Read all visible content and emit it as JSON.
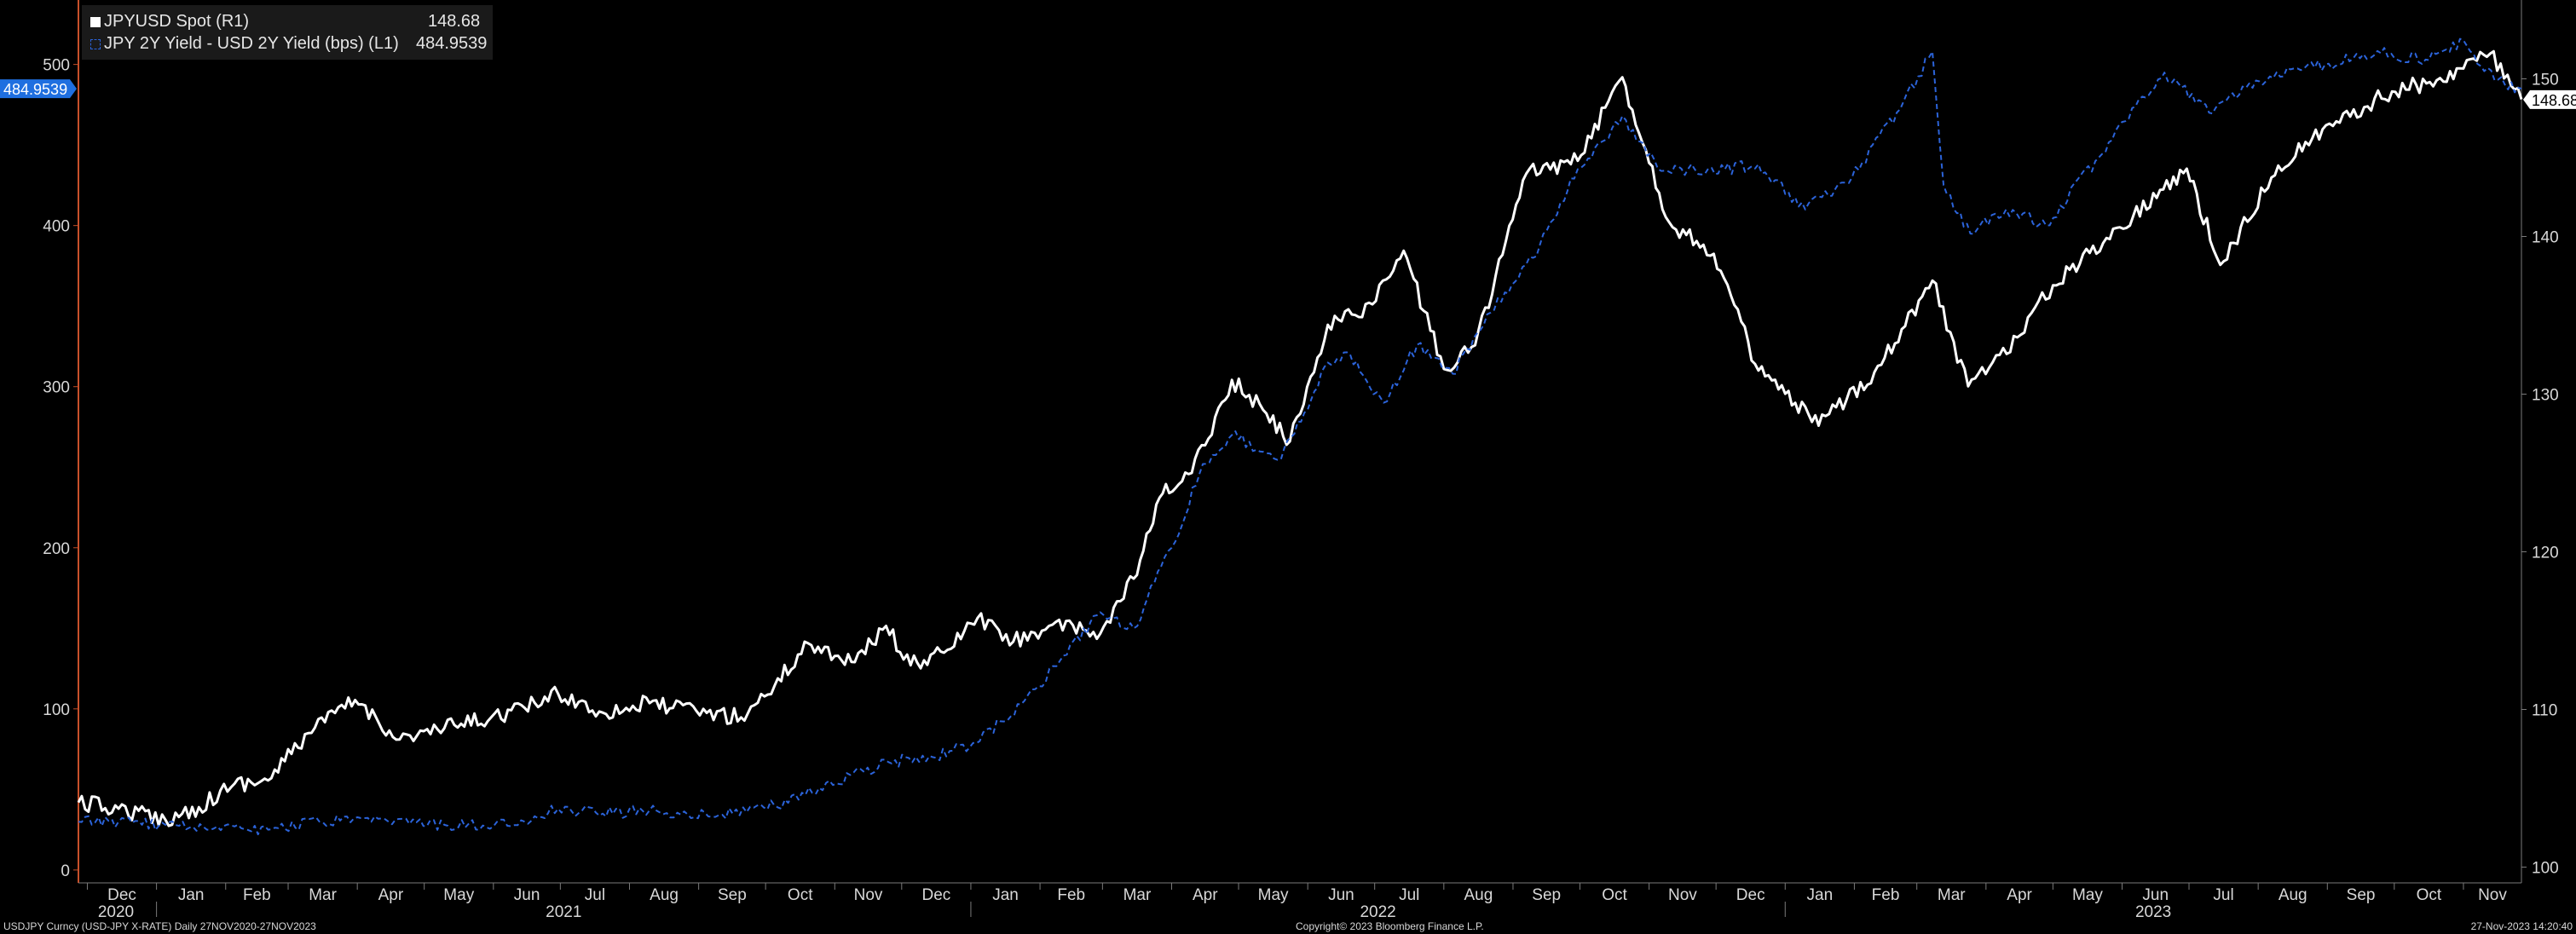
{
  "chart_data": {
    "type": "line",
    "x_range": [
      "2020-11-27",
      "2023-11-27"
    ],
    "frequency": "Daily",
    "left_axis": {
      "ticks": [
        0,
        100,
        200,
        300,
        400,
        500
      ],
      "range": [
        -8,
        540
      ],
      "current_value_label": "484.9539"
    },
    "right_axis": {
      "ticks": [
        100,
        110,
        120,
        130,
        140,
        150
      ],
      "range": [
        99,
        155
      ],
      "current_value_label": "148.68"
    },
    "x_month_labels": [
      "Dec",
      "Jan",
      "Feb",
      "Mar",
      "Apr",
      "May",
      "Jun",
      "Jul",
      "Aug",
      "Sep",
      "Oct",
      "Nov",
      "Dec",
      "Jan",
      "Feb",
      "Mar",
      "Apr",
      "May",
      "Jun",
      "Jul",
      "Aug",
      "Sep",
      "Oct",
      "Nov",
      "Dec",
      "Jan",
      "Feb",
      "Mar",
      "Apr",
      "May",
      "Jun",
      "Jul",
      "Aug",
      "Sep",
      "Oct",
      "Nov"
    ],
    "x_year_labels": [
      "2020",
      "2021",
      "2022",
      "2023"
    ],
    "grid": false,
    "legend_position": "top-left",
    "series": [
      {
        "name": "JPYUSD Spot (R1)",
        "axis": "right",
        "color": "#ffffff",
        "style": "solid",
        "last_value": "148.68",
        "points": [
          [
            "2020-11-27",
            104.1
          ],
          [
            "2020-12-15",
            103.7
          ],
          [
            "2021-01-05",
            103.0
          ],
          [
            "2021-01-20",
            103.8
          ],
          [
            "2021-02-05",
            105.3
          ],
          [
            "2021-02-20",
            105.5
          ],
          [
            "2021-03-10",
            108.5
          ],
          [
            "2021-03-31",
            110.6
          ],
          [
            "2021-04-20",
            108.1
          ],
          [
            "2021-05-10",
            108.8
          ],
          [
            "2021-05-31",
            109.5
          ],
          [
            "2021-06-15",
            110.1
          ],
          [
            "2021-06-30",
            111.0
          ],
          [
            "2021-07-20",
            109.8
          ],
          [
            "2021-08-10",
            110.4
          ],
          [
            "2021-08-31",
            109.9
          ],
          [
            "2021-09-20",
            109.5
          ],
          [
            "2021-10-05",
            111.5
          ],
          [
            "2021-10-20",
            114.2
          ],
          [
            "2021-11-10",
            113.0
          ],
          [
            "2021-11-24",
            115.3
          ],
          [
            "2021-12-05",
            112.8
          ],
          [
            "2021-12-20",
            113.6
          ],
          [
            "2022-01-04",
            115.8
          ],
          [
            "2022-01-20",
            114.3
          ],
          [
            "2022-02-05",
            115.3
          ],
          [
            "2022-02-28",
            114.8
          ],
          [
            "2022-03-15",
            118.3
          ],
          [
            "2022-03-28",
            123.7
          ],
          [
            "2022-04-10",
            125.0
          ],
          [
            "2022-04-28",
            130.9
          ],
          [
            "2022-05-12",
            129.0
          ],
          [
            "2022-05-24",
            127.0
          ],
          [
            "2022-06-10",
            134.4
          ],
          [
            "2022-06-30",
            135.7
          ],
          [
            "2022-07-14",
            139.1
          ],
          [
            "2022-08-01",
            131.6
          ],
          [
            "2022-08-15",
            133.1
          ],
          [
            "2022-09-07",
            144.0
          ],
          [
            "2022-09-30",
            144.8
          ],
          [
            "2022-10-20",
            150.1
          ],
          [
            "2022-11-10",
            140.9
          ],
          [
            "2022-11-30",
            138.9
          ],
          [
            "2022-12-20",
            131.5
          ],
          [
            "2023-01-16",
            128.0
          ],
          [
            "2023-02-10",
            131.4
          ],
          [
            "2023-03-08",
            137.2
          ],
          [
            "2023-03-24",
            130.5
          ],
          [
            "2023-04-15",
            133.6
          ],
          [
            "2023-05-01",
            136.9
          ],
          [
            "2023-05-25",
            139.9
          ],
          [
            "2023-06-30",
            144.3
          ],
          [
            "2023-07-15",
            138.2
          ],
          [
            "2023-08-10",
            144.5
          ],
          [
            "2023-09-05",
            147.3
          ],
          [
            "2023-09-30",
            149.2
          ],
          [
            "2023-10-20",
            149.9
          ],
          [
            "2023-11-13",
            151.6
          ],
          [
            "2023-11-27",
            148.7
          ]
        ]
      },
      {
        "name": "JPY 2Y Yield - USD 2Y Yield (bps) (L1)",
        "axis": "left",
        "color": "#2b63d9",
        "style": "dashed",
        "last_value": "484.9539",
        "points": [
          [
            "2020-11-27",
            30
          ],
          [
            "2020-12-15",
            30
          ],
          [
            "2021-01-05",
            28
          ],
          [
            "2021-02-05",
            27
          ],
          [
            "2021-02-20",
            25
          ],
          [
            "2021-03-15",
            30
          ],
          [
            "2021-04-15",
            30
          ],
          [
            "2021-05-10",
            28
          ],
          [
            "2021-06-01",
            27
          ],
          [
            "2021-06-15",
            30
          ],
          [
            "2021-06-30",
            38
          ],
          [
            "2021-07-20",
            35
          ],
          [
            "2021-08-10",
            37
          ],
          [
            "2021-09-10",
            34
          ],
          [
            "2021-10-05",
            40
          ],
          [
            "2021-10-25",
            51
          ],
          [
            "2021-11-25",
            67
          ],
          [
            "2021-12-15",
            70
          ],
          [
            "2022-01-05",
            80
          ],
          [
            "2022-01-25",
            105
          ],
          [
            "2022-02-10",
            130
          ],
          [
            "2022-02-28",
            160
          ],
          [
            "2022-03-15",
            150
          ],
          [
            "2022-04-01",
            200
          ],
          [
            "2022-04-15",
            252
          ],
          [
            "2022-04-28",
            270
          ],
          [
            "2022-05-20",
            255
          ],
          [
            "2022-06-10",
            315
          ],
          [
            "2022-06-20",
            320
          ],
          [
            "2022-07-05",
            290
          ],
          [
            "2022-07-20",
            326
          ],
          [
            "2022-08-05",
            308
          ],
          [
            "2022-08-22",
            346
          ],
          [
            "2022-09-10",
            380
          ],
          [
            "2022-09-30",
            435
          ],
          [
            "2022-10-20",
            468
          ],
          [
            "2022-11-05",
            435
          ],
          [
            "2022-12-05",
            435
          ],
          [
            "2022-12-20",
            438
          ],
          [
            "2023-01-10",
            410
          ],
          [
            "2023-01-31",
            430
          ],
          [
            "2023-02-20",
            470
          ],
          [
            "2023-03-08",
            508
          ],
          [
            "2023-03-13",
            425
          ],
          [
            "2023-03-25",
            395
          ],
          [
            "2023-04-10",
            410
          ],
          [
            "2023-04-28",
            400
          ],
          [
            "2023-05-20",
            440
          ],
          [
            "2023-06-10",
            480
          ],
          [
            "2023-06-20",
            495
          ],
          [
            "2023-07-10",
            470
          ],
          [
            "2023-07-31",
            490
          ],
          [
            "2023-08-31",
            500
          ],
          [
            "2023-09-25",
            507
          ],
          [
            "2023-10-15",
            503
          ],
          [
            "2023-11-01",
            515
          ],
          [
            "2023-11-15",
            490
          ],
          [
            "2023-11-27",
            485
          ]
        ]
      }
    ]
  },
  "legend": {
    "entries": [
      {
        "label": "JPYUSD Spot (R1)",
        "value": "148.68"
      },
      {
        "label": "JPY 2Y Yield - USD 2Y Yield (bps) (L1)",
        "value": "484.9539"
      }
    ]
  },
  "footer": {
    "left": "USDJPY Curncy (USD-JPY X-RATE)  Daily 27NOV2020-27NOV2023",
    "center": "Copyright© 2023 Bloomberg Finance L.P.",
    "right": "27-Nov-2023 14:20:40"
  }
}
